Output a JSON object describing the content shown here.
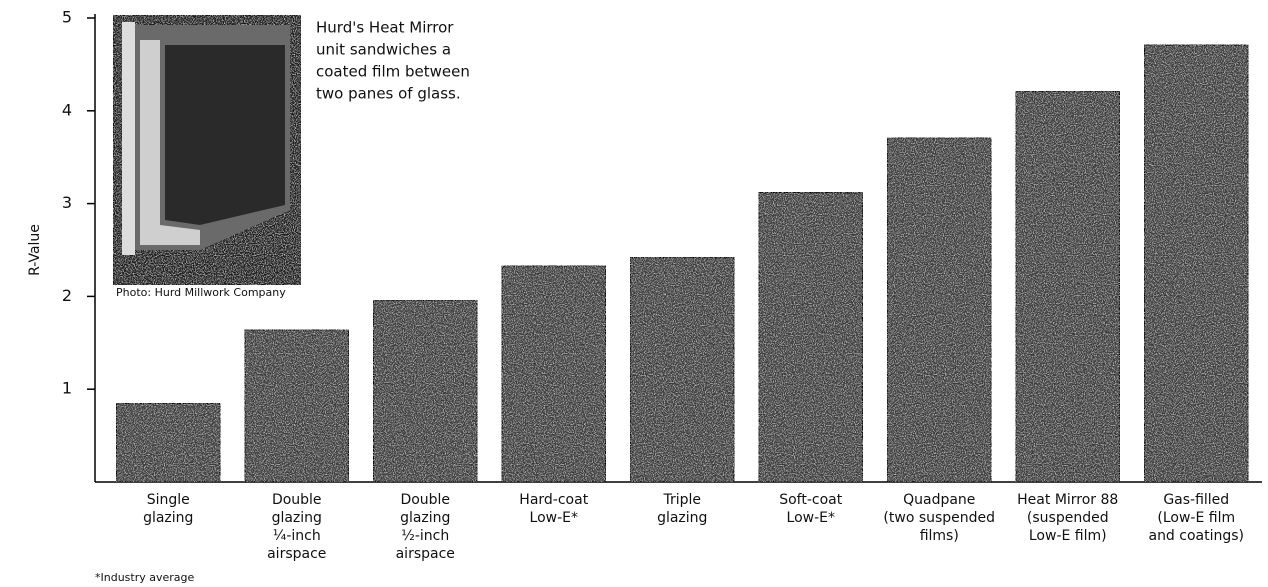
{
  "chart_data": {
    "type": "bar",
    "y_label": "R-Value",
    "categories": [
      [
        "Single",
        "glazing"
      ],
      [
        "Double",
        "glazing",
        "¼-inch",
        "airspace"
      ],
      [
        "Double",
        "glazing",
        "½-inch",
        "airspace"
      ],
      [
        "Hard-coat",
        "Low-E*"
      ],
      [
        "Triple",
        "glazing"
      ],
      [
        "Soft-coat",
        "Low-E*"
      ],
      [
        "Quadpane",
        "(two suspended",
        "films)"
      ],
      [
        "Heat Mirror 88",
        "(suspended",
        "Low-E film)"
      ],
      [
        "Gas-filled",
        "(Low-E film",
        "and coatings)"
      ]
    ],
    "values": [
      0.85,
      1.64,
      1.96,
      2.33,
      2.42,
      3.12,
      3.71,
      4.21,
      4.71
    ],
    "color": "#3a3a3a",
    "ylim": [
      0,
      5
    ],
    "yticks": [
      1,
      2,
      3,
      4,
      5
    ],
    "annotation": [
      "Hurd's Heat Mirror",
      "unit sandwiches a",
      "coated film between",
      "two panes of glass."
    ],
    "photo_credit": "Photo: Hurd Millwork Company",
    "footnote": "*Industry average"
  }
}
